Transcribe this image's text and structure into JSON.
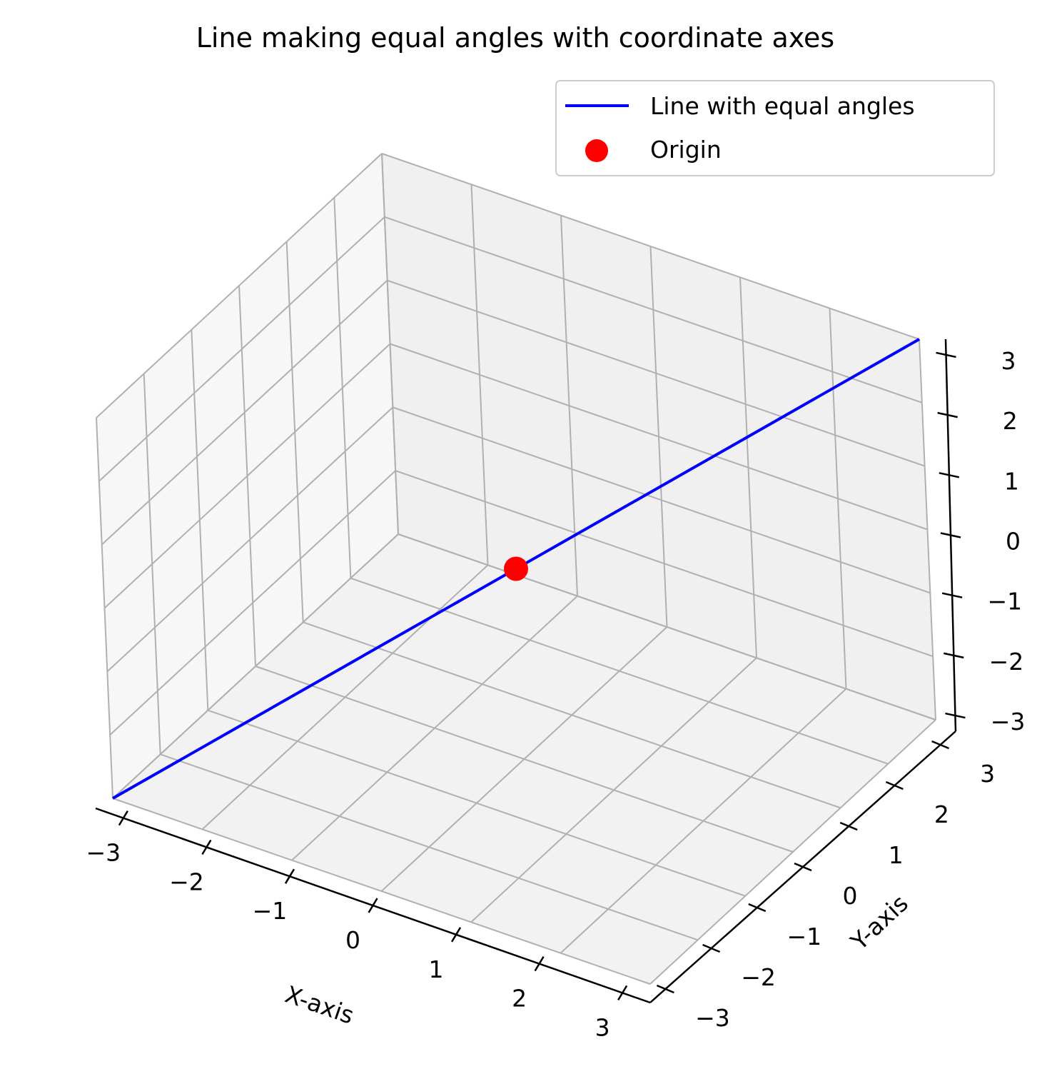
{
  "chart_data": {
    "type": "line3d",
    "title": "Line making equal angles with coordinate axes",
    "xlabel": "X-axis",
    "ylabel": "Y-axis",
    "zlabel": "",
    "xlim": [
      -3,
      3
    ],
    "ylim": [
      -3,
      3
    ],
    "zlim": [
      -3,
      3
    ],
    "xticks": [
      "−3",
      "−2",
      "−1",
      "0",
      "1",
      "2",
      "3"
    ],
    "yticks": [
      "−3",
      "−2",
      "−1",
      "0",
      "1",
      "2",
      "3"
    ],
    "zticks": [
      "−3",
      "−2",
      "−1",
      "0",
      "1",
      "2",
      "3"
    ],
    "grid": true,
    "legend_position": "top-right",
    "series": [
      {
        "name": "Line with equal angles",
        "kind": "line",
        "color": "#0000ff",
        "x": [
          -3,
          3
        ],
        "y": [
          -3,
          3
        ],
        "z": [
          -3,
          3
        ]
      },
      {
        "name": "Origin",
        "kind": "scatter",
        "color": "#ff0000",
        "x": [
          0
        ],
        "y": [
          0
        ],
        "z": [
          0
        ]
      }
    ]
  }
}
